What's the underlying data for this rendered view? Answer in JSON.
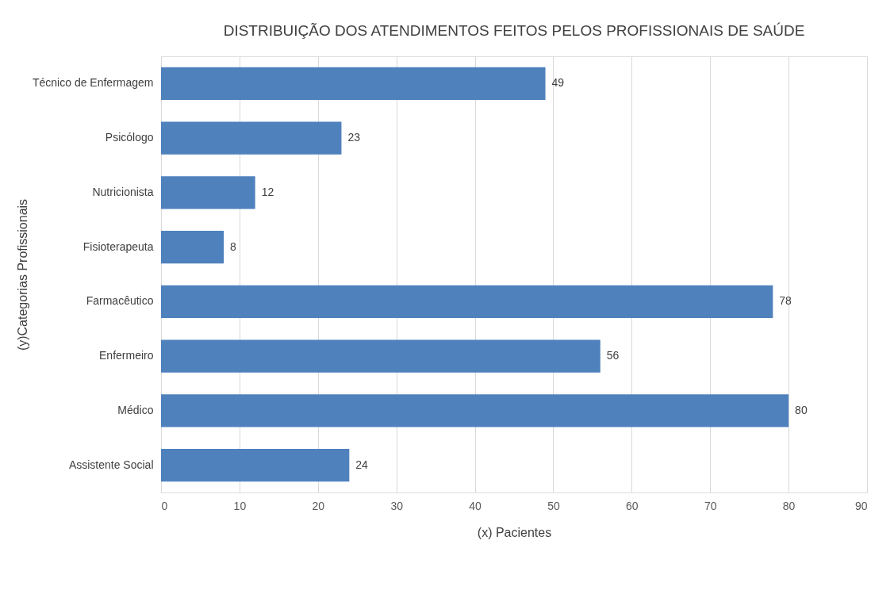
{
  "chart_data": {
    "type": "bar",
    "orientation": "horizontal",
    "title": "DISTRIBUIÇÃO DOS ATENDIMENTOS FEITOS PELOS PROFISSIONAIS DE SAÚDE",
    "xlabel": "(x) Pacientes",
    "ylabel": "(y)Categorias Profissionais",
    "categories": [
      "Técnico de Enfermagem",
      "Psicólogo",
      "Nutricionista",
      "Fisioterapeuta",
      "Farmacêutico",
      "Enfermeiro",
      "Médico",
      "Assistente Social"
    ],
    "values": [
      49,
      23,
      12,
      8,
      78,
      56,
      80,
      24
    ],
    "color": "#4f81bd",
    "xlim": [
      0,
      90
    ],
    "xticks": [
      0,
      10,
      20,
      30,
      40,
      50,
      60,
      70,
      80,
      90
    ],
    "grid": "x",
    "data_labels": true
  }
}
